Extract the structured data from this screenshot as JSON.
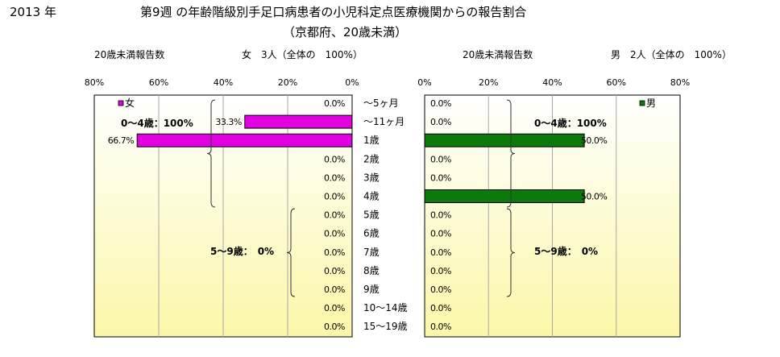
{
  "header": {
    "year": "2013 年",
    "title_line1": "第9週 の年齢階級別手足口病患者の小児科定点医療機関からの報告割合",
    "title_line2": "（京都府、20歳未満）"
  },
  "left_panel": {
    "count_label": "20歳未満報告数",
    "total_label": "女　3人（全体の　100%）"
  },
  "right_panel": {
    "count_label": "20歳未満報告数",
    "total_label": "男　2人（全体の　100%）"
  },
  "colors": {
    "female_bar": "#e000e0",
    "male_bar": "#0b7a0b",
    "plot_bg_top": "#ffffff",
    "plot_bg_bottom": "#fbf7a8",
    "gridline": "#a8a8a8"
  },
  "chart_data": [
    {
      "type": "bar",
      "orientation": "horizontal",
      "direction": "right-to-left",
      "series": [
        {
          "name": "女",
          "values": [
            0,
            33.3,
            66.7,
            0,
            0,
            0,
            0,
            0,
            0,
            0,
            0,
            0,
            0
          ]
        }
      ],
      "categories": [
        "～5ヶ月",
        "～11ヶ月",
        "1歳",
        "2歳",
        "3歳",
        "4歳",
        "5歳",
        "6歳",
        "7歳",
        "8歳",
        "9歳",
        "10～14歳",
        "15～19歳"
      ],
      "value_labels": [
        "0.0%",
        "33.3%",
        "66.7%",
        "0.0%",
        "0.0%",
        "0.0%",
        "0.0%",
        "0.0%",
        "0.0%",
        "0.0%",
        "0.0%",
        "0.0%",
        "0.0%"
      ],
      "xlim": [
        0,
        80
      ],
      "x_ticks": [
        "80%",
        "60%",
        "40%",
        "20%",
        "0%"
      ],
      "legend": "top-left",
      "grid": true,
      "annotations": [
        "0～4歳：100%",
        "5～9歳：　0%"
      ]
    },
    {
      "type": "bar",
      "orientation": "horizontal",
      "direction": "left-to-right",
      "series": [
        {
          "name": "男",
          "values": [
            0,
            0,
            50,
            0,
            0,
            50,
            0,
            0,
            0,
            0,
            0,
            0,
            0
          ]
        }
      ],
      "categories": [
        "～5ヶ月",
        "～11ヶ月",
        "1歳",
        "2歳",
        "3歳",
        "4歳",
        "5歳",
        "6歳",
        "7歳",
        "8歳",
        "9歳",
        "10～14歳",
        "15～19歳"
      ],
      "value_labels": [
        "0.0%",
        "0.0%",
        "50.0%",
        "0.0%",
        "0.0%",
        "50.0%",
        "0.0%",
        "0.0%",
        "0.0%",
        "0.0%",
        "0.0%",
        "0.0%",
        "0.0%"
      ],
      "xlim": [
        0,
        80
      ],
      "x_ticks": [
        "0%",
        "20%",
        "40%",
        "60%",
        "80%"
      ],
      "legend": "top-right",
      "grid": true,
      "annotations": [
        "0～4歳：100%",
        "5～9歳：　0%"
      ]
    }
  ]
}
